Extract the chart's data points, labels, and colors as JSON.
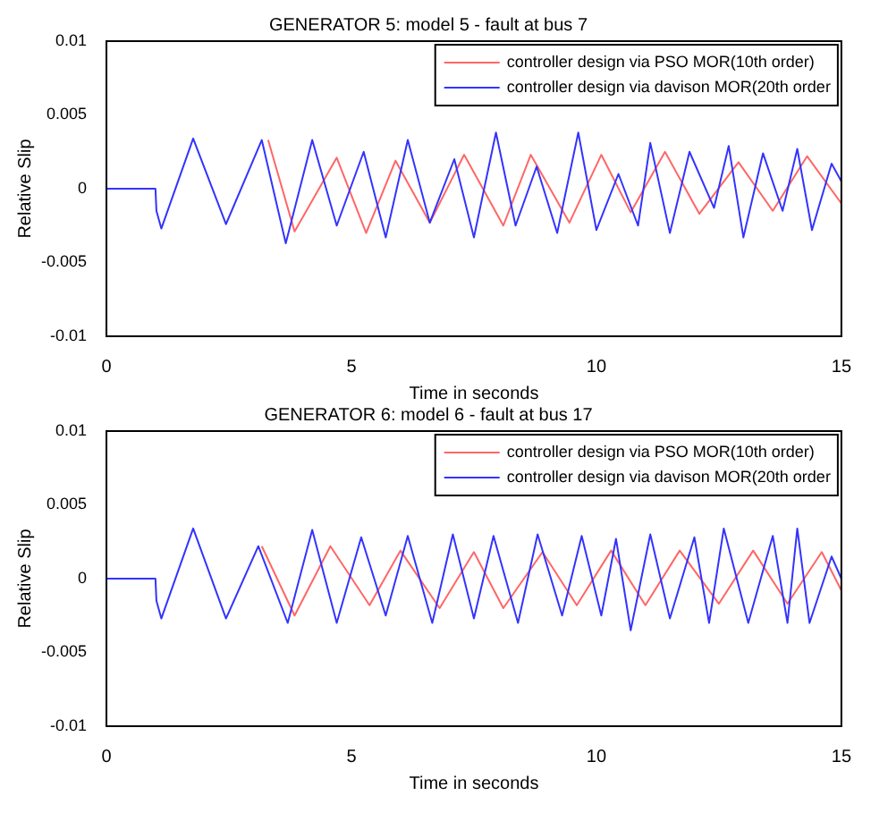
{
  "chart_data": [
    {
      "type": "line",
      "title": "GENERATOR 5: model 5 - fault at bus 7",
      "xlabel": "Time in seconds",
      "ylabel": "Relative Slip",
      "xlim": [
        0,
        15
      ],
      "xticks": [
        0,
        5,
        10,
        15
      ],
      "ylim": [
        -0.01,
        0.01
      ],
      "yticks": [
        -0.01,
        -0.005,
        0,
        0.005,
        0.01
      ],
      "grid": false,
      "legend": "top right",
      "marker": "none",
      "line_style": "solid",
      "series": [
        {
          "name": "controller design via PSO MOR(10th order)",
          "color": "#ff6666",
          "x": [
            3.3,
            3.84,
            4.7,
            5.3,
            5.9,
            6.6,
            7.3,
            8.1,
            8.66,
            9.45,
            10.1,
            10.7,
            11.4,
            12.1,
            12.9,
            13.6,
            14.3,
            15
          ],
          "values": [
            0.0033,
            -0.0029,
            0.0021,
            -0.003,
            0.0019,
            -0.0023,
            0.0023,
            -0.0025,
            0.0023,
            -0.0023,
            0.0023,
            -0.0016,
            0.0025,
            -0.0017,
            0.0018,
            -0.0015,
            0.0022,
            -0.001
          ]
        },
        {
          "name": "controller design via davison MOR(20th order",
          "color": "#3333ff",
          "x": [
            0,
            1,
            1.02,
            1.12,
            1.77,
            2.44,
            3.17,
            3.66,
            4.2,
            4.7,
            5.25,
            5.7,
            6.15,
            6.6,
            7.1,
            7.5,
            7.95,
            8.35,
            8.78,
            9.2,
            9.63,
            10,
            10.45,
            10.85,
            11.1,
            11.5,
            11.9,
            12.4,
            12.7,
            13,
            13.4,
            13.8,
            14.1,
            14.4,
            14.8,
            15
          ],
          "values": [
            0,
            0,
            -0.0015,
            -0.0027,
            0.0034,
            -0.0024,
            0.0033,
            -0.0037,
            0.0033,
            -0.0025,
            0.0025,
            -0.0033,
            0.0033,
            -0.0023,
            0.002,
            -0.0033,
            0.0038,
            -0.0025,
            0.0015,
            -0.003,
            0.0038,
            -0.0028,
            0.001,
            -0.0025,
            0.0031,
            -0.003,
            0.0025,
            -0.0013,
            0.0029,
            -0.0033,
            0.0024,
            -0.0015,
            0.0027,
            -0.0028,
            0.0017,
            0.0005
          ]
        }
      ]
    },
    {
      "type": "line",
      "title": "GENERATOR 6: model 6 - fault at bus 17",
      "xlabel": "Time in seconds",
      "ylabel": "Relative Slip",
      "xlim": [
        0,
        15
      ],
      "xticks": [
        0,
        5,
        10,
        15
      ],
      "ylim": [
        -0.01,
        0.01
      ],
      "yticks": [
        -0.01,
        -0.005,
        0,
        0.005,
        0.01
      ],
      "grid": false,
      "legend": "top right",
      "marker": "none",
      "line_style": "solid",
      "series": [
        {
          "name": "controller design via PSO MOR(10th order)",
          "color": "#ff6666",
          "x": [
            3.17,
            3.84,
            4.57,
            5.37,
            6,
            6.8,
            7.5,
            8.1,
            8.9,
            9.6,
            10.3,
            11,
            11.7,
            12.5,
            13.2,
            13.9,
            14.6,
            15
          ],
          "values": [
            0.0022,
            -0.0025,
            0.0022,
            -0.0018,
            0.0019,
            -0.002,
            0.0018,
            -0.002,
            0.0018,
            -0.0018,
            0.0019,
            -0.0018,
            0.0019,
            -0.0017,
            0.0019,
            -0.0017,
            0.0018,
            -0.0008
          ]
        },
        {
          "name": "controller design via davison MOR(20th order",
          "color": "#3333ff",
          "x": [
            0,
            1,
            1.02,
            1.12,
            1.77,
            2.44,
            3.1,
            3.7,
            4.2,
            4.7,
            5.2,
            5.7,
            6.15,
            6.65,
            7.07,
            7.5,
            7.9,
            8.4,
            8.8,
            9.3,
            9.7,
            10.1,
            10.4,
            10.7,
            11.1,
            11.5,
            12,
            12.3,
            12.6,
            13.1,
            13.6,
            13.9,
            14.1,
            14.35,
            14.8,
            15
          ],
          "values": [
            0,
            0,
            -0.0015,
            -0.0027,
            0.0034,
            -0.0027,
            0.0022,
            -0.003,
            0.0033,
            -0.003,
            0.0028,
            -0.0025,
            0.0029,
            -0.003,
            0.003,
            -0.0027,
            0.0029,
            -0.003,
            0.003,
            -0.0025,
            0.0029,
            -0.0025,
            0.0027,
            -0.0035,
            0.003,
            -0.0027,
            0.0028,
            -0.003,
            0.0034,
            -0.003,
            0.0029,
            -0.003,
            0.0034,
            -0.003,
            0.0015,
            0
          ]
        }
      ]
    }
  ]
}
